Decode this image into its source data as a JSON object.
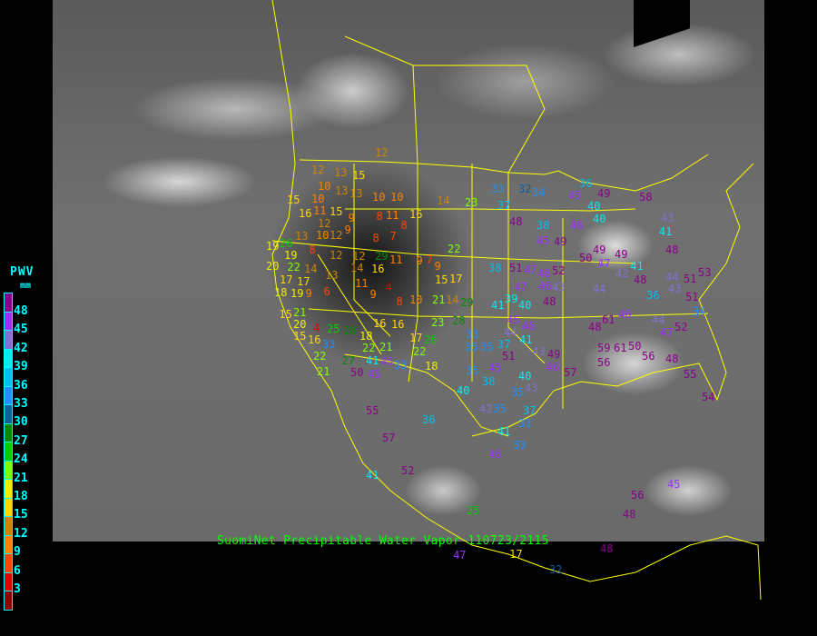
{
  "caption": "SuomiNet Precipitable Water Vapor 110723/2115",
  "legend": {
    "title": "PWV",
    "unit": "mm",
    "labels": [
      "48",
      "45",
      "42",
      "39",
      "36",
      "33",
      "30",
      "27",
      "24",
      "21",
      "18",
      "15",
      "12",
      "9",
      "6",
      "3"
    ],
    "colors": [
      "#8b008b",
      "#9b30ff",
      "#8470d0",
      "#00eeee",
      "#00bfee",
      "#1e90ff",
      "#10609c",
      "#008b00",
      "#00cd00",
      "#7fff00",
      "#eeee00",
      "#ffd700",
      "#cd8500",
      "#ff8000",
      "#ff4500",
      "#dd0000",
      "#8b0000"
    ]
  },
  "colors": {
    "borders": "#ffff00",
    "caption": "#00ff00",
    "legend_text": "#00ffff"
  },
  "stations": [
    12,
    12,
    13,
    15,
    10,
    13,
    13,
    15,
    10,
    11,
    10,
    10,
    14,
    23,
    16,
    15,
    9,
    8,
    11,
    16,
    12,
    10,
    9,
    8,
    13,
    12,
    8,
    7,
    19,
    26,
    19,
    8,
    22,
    20,
    22,
    14,
    12,
    12,
    29,
    11,
    13,
    14,
    16,
    9,
    7,
    9,
    17,
    17,
    18,
    19,
    9,
    11,
    4,
    9,
    6,
    15,
    17,
    8,
    10,
    21,
    14,
    29,
    21,
    15,
    20,
    15,
    16,
    4,
    25,
    28,
    16,
    16,
    23,
    28,
    18,
    22,
    17,
    26,
    21,
    22,
    33,
    41,
    45,
    33,
    18,
    22,
    21,
    50,
    45,
    27,
    33,
    32,
    34,
    37,
    48,
    38,
    45,
    49,
    36,
    45,
    49,
    40,
    40,
    46,
    58,
    43,
    41,
    48,
    50,
    49,
    47,
    49,
    38,
    51,
    47,
    46,
    52,
    48,
    44,
    51,
    53,
    47,
    46,
    43,
    42,
    41,
    39,
    41,
    40,
    48,
    44,
    43,
    51,
    45,
    44,
    46,
    41,
    36,
    34,
    35,
    33,
    35,
    37,
    43,
    61,
    46,
    44,
    47,
    52,
    35,
    45,
    40,
    46,
    48,
    59,
    61,
    50,
    56,
    40,
    38,
    35,
    43,
    57,
    56,
    49,
    51,
    48,
    55,
    54,
    42,
    35,
    37,
    33,
    55,
    36,
    57,
    46,
    33,
    41,
    52,
    41,
    25,
    56,
    45,
    48,
    47,
    17,
    48,
    32
  ]
}
